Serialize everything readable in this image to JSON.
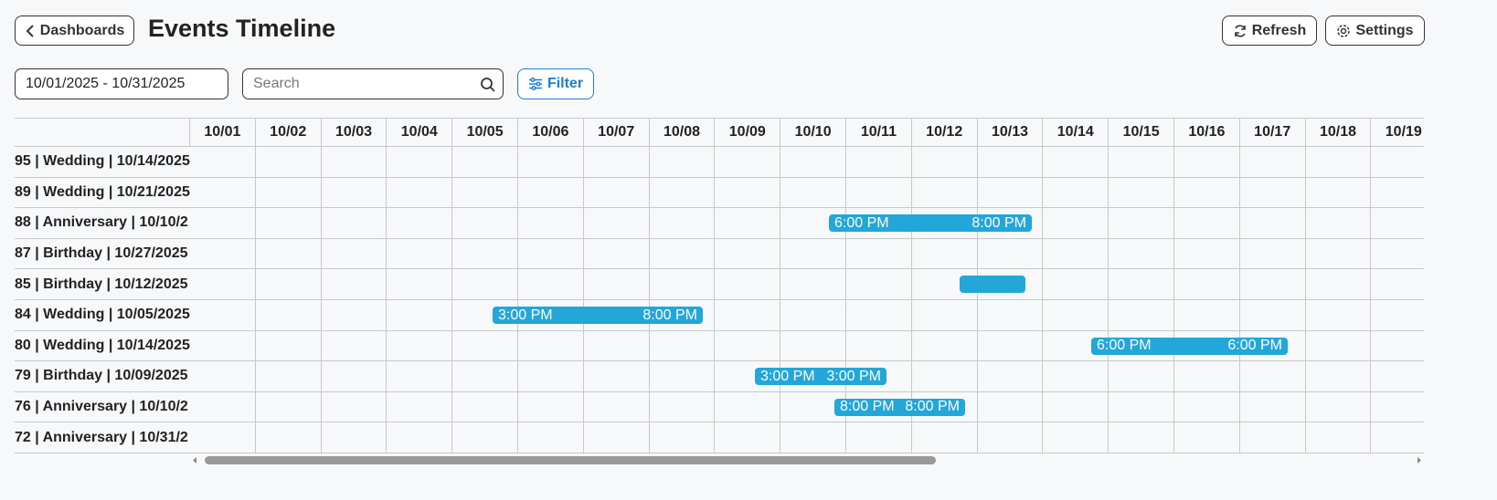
{
  "header": {
    "back_button": "Dashboards",
    "title": "Events Timeline",
    "refresh_button": "Refresh",
    "settings_button": "Settings"
  },
  "toolbar": {
    "date_range": "10/01/2025 - 10/31/2025",
    "search_placeholder": "Search",
    "filter_button": "Filter"
  },
  "timeline": {
    "columns": [
      "10/01",
      "10/02",
      "10/03",
      "10/04",
      "10/05",
      "10/06",
      "10/07",
      "10/08",
      "10/09",
      "10/10",
      "10/11",
      "10/12",
      "10/13",
      "10/14",
      "10/15",
      "10/16",
      "10/17",
      "10/18",
      "10/19"
    ],
    "rows": [
      {
        "label": "95 | Wedding | 10/14/2025"
      },
      {
        "label": "89 | Wedding | 10/21/2025"
      },
      {
        "label": "88 | Anniversary | 10/10/2",
        "bar_labels": [
          "6:00 PM",
          "8:00 PM"
        ]
      },
      {
        "label": "87 | Birthday | 10/27/2025"
      },
      {
        "label": "85 | Birthday | 10/12/2025"
      },
      {
        "label": "84 | Wedding | 10/05/2025",
        "bar_labels": [
          "3:00 PM",
          "8:00 PM"
        ]
      },
      {
        "label": "80 | Wedding | 10/14/2025",
        "bar_labels": [
          "6:00 PM",
          "6:00 PM"
        ]
      },
      {
        "label": "79 | Birthday | 10/09/2025",
        "bar_labels": [
          "3:00 PM",
          "3:00 PM"
        ]
      },
      {
        "label": "76 | Anniversary | 10/10/2",
        "bar_labels": [
          "8:00 PM",
          "8:00 PM"
        ]
      },
      {
        "label": "72 | Anniversary | 10/31/2"
      }
    ]
  }
}
